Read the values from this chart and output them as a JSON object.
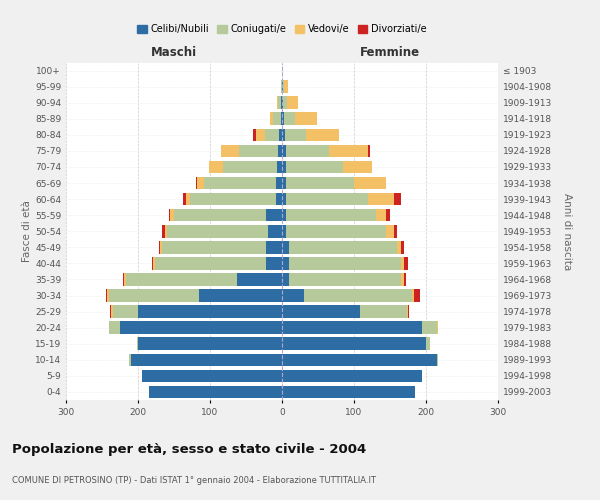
{
  "age_groups": [
    "0-4",
    "5-9",
    "10-14",
    "15-19",
    "20-24",
    "25-29",
    "30-34",
    "35-39",
    "40-44",
    "45-49",
    "50-54",
    "55-59",
    "60-64",
    "65-69",
    "70-74",
    "75-79",
    "80-84",
    "85-89",
    "90-94",
    "95-99",
    "100+"
  ],
  "birth_years": [
    "1999-2003",
    "1994-1998",
    "1989-1993",
    "1984-1988",
    "1979-1983",
    "1974-1978",
    "1969-1973",
    "1964-1968",
    "1959-1963",
    "1954-1958",
    "1949-1953",
    "1944-1948",
    "1939-1943",
    "1934-1938",
    "1929-1933",
    "1924-1928",
    "1919-1923",
    "1914-1918",
    "1909-1913",
    "1904-1908",
    "≤ 1903"
  ],
  "colors": {
    "single": "#2e6da4",
    "married": "#b5c99a",
    "widowed": "#f4c066",
    "divorced": "#cc2222"
  },
  "males": {
    "single": [
      185,
      195,
      210,
      200,
      225,
      200,
      115,
      62,
      22,
      22,
      20,
      22,
      8,
      8,
      7,
      5,
      4,
      2,
      1,
      0,
      0
    ],
    "married": [
      0,
      0,
      2,
      2,
      15,
      35,
      125,
      155,
      155,
      145,
      140,
      128,
      120,
      100,
      75,
      55,
      20,
      10,
      4,
      1,
      0
    ],
    "widowed": [
      0,
      0,
      0,
      0,
      0,
      2,
      3,
      2,
      2,
      2,
      3,
      5,
      5,
      10,
      20,
      25,
      12,
      5,
      2,
      0,
      0
    ],
    "divorced": [
      0,
      0,
      0,
      0,
      0,
      2,
      2,
      2,
      2,
      2,
      3,
      2,
      5,
      2,
      0,
      0,
      4,
      0,
      0,
      0,
      0
    ]
  },
  "females": {
    "single": [
      185,
      195,
      215,
      200,
      195,
      108,
      30,
      10,
      10,
      10,
      5,
      5,
      5,
      5,
      5,
      5,
      4,
      3,
      2,
      1,
      0
    ],
    "married": [
      0,
      0,
      2,
      5,
      20,
      65,
      150,
      155,
      155,
      150,
      140,
      125,
      115,
      95,
      80,
      60,
      30,
      15,
      5,
      2,
      0
    ],
    "widowed": [
      0,
      0,
      0,
      0,
      2,
      2,
      3,
      5,
      5,
      5,
      10,
      15,
      35,
      45,
      40,
      55,
      45,
      30,
      15,
      5,
      0
    ],
    "divorced": [
      0,
      0,
      0,
      0,
      0,
      2,
      8,
      2,
      5,
      5,
      5,
      5,
      10,
      0,
      0,
      2,
      0,
      0,
      0,
      0,
      0
    ]
  },
  "title": "Popolazione per età, sesso e stato civile - 2004",
  "subtitle": "COMUNE DI PETROSINO (TP) - Dati ISTAT 1° gennaio 2004 - Elaborazione TUTTITALIA.IT",
  "xlabel_left": "Maschi",
  "xlabel_right": "Femmine",
  "ylabel_left": "Fasce di età",
  "ylabel_right": "Anni di nascita",
  "xlim": 300,
  "legend_labels": [
    "Celibi/Nubili",
    "Coniugati/e",
    "Vedovi/e",
    "Divorziati/e"
  ],
  "background_color": "#f0f0f0",
  "plot_bg_color": "#ffffff"
}
